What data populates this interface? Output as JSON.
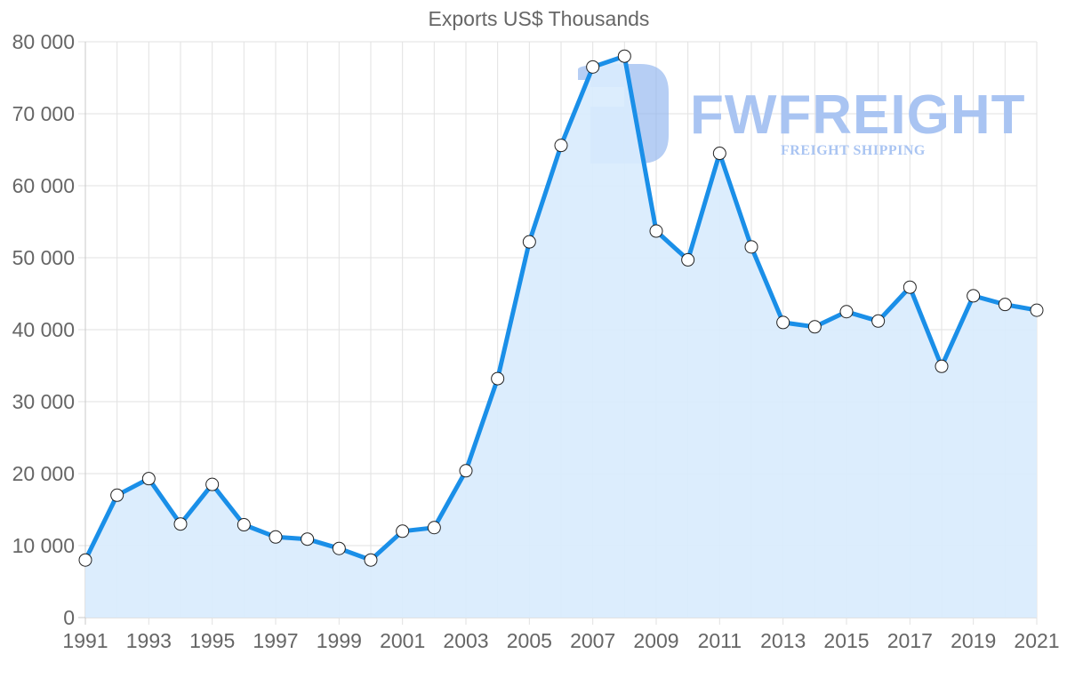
{
  "chart_data": {
    "type": "area",
    "title": "Exports US$ Thousands",
    "xlabel": "",
    "ylabel": "",
    "ylim": [
      0,
      80000
    ],
    "xlim": [
      1991,
      2021
    ],
    "grid": true,
    "legend": "none",
    "y_ticks": [
      "0",
      "10 000",
      "20 000",
      "30 000",
      "40 000",
      "50 000",
      "60 000",
      "70 000",
      "80 000"
    ],
    "x_ticks": [
      "1991",
      "1993",
      "1995",
      "1997",
      "1999",
      "2001",
      "2003",
      "2005",
      "2007",
      "2009",
      "2011",
      "2013",
      "2015",
      "2017",
      "2019",
      "2021"
    ],
    "categories": [
      1991,
      1992,
      1993,
      1994,
      1995,
      1996,
      1997,
      1998,
      1999,
      2000,
      2001,
      2002,
      2003,
      2004,
      2005,
      2006,
      2007,
      2008,
      2009,
      2010,
      2011,
      2012,
      2013,
      2014,
      2015,
      2016,
      2017,
      2018,
      2019,
      2020,
      2021
    ],
    "series": [
      {
        "name": "Exports US$ Thousands",
        "color": "#1a8fe8",
        "fill": "#d9ecfd",
        "values": [
          8000,
          17000,
          19300,
          13000,
          18500,
          12900,
          11200,
          10900,
          9600,
          8000,
          12000,
          12500,
          20400,
          33200,
          52200,
          65600,
          76500,
          78000,
          53700,
          49700,
          64500,
          51500,
          41000,
          40400,
          42500,
          41200,
          45900,
          34900,
          44700,
          43500,
          42700
        ]
      }
    ]
  },
  "watermark": {
    "brand": "FWFREIGHT",
    "tagline": "FREIGHT SHIPPING"
  }
}
